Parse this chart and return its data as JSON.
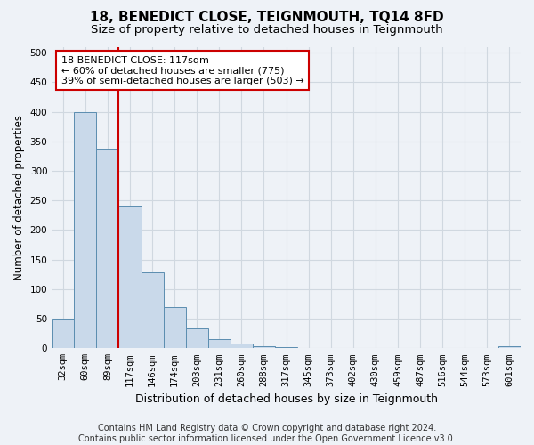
{
  "title": "18, BENEDICT CLOSE, TEIGNMOUTH, TQ14 8FD",
  "subtitle": "Size of property relative to detached houses in Teignmouth",
  "xlabel": "Distribution of detached houses by size in Teignmouth",
  "ylabel": "Number of detached properties",
  "footer_line1": "Contains HM Land Registry data © Crown copyright and database right 2024.",
  "footer_line2": "Contains public sector information licensed under the Open Government Licence v3.0.",
  "categories": [
    "32sqm",
    "60sqm",
    "89sqm",
    "117sqm",
    "146sqm",
    "174sqm",
    "203sqm",
    "231sqm",
    "260sqm",
    "288sqm",
    "317sqm",
    "345sqm",
    "373sqm",
    "402sqm",
    "430sqm",
    "459sqm",
    "487sqm",
    "516sqm",
    "544sqm",
    "573sqm",
    "601sqm"
  ],
  "values": [
    50,
    400,
    338,
    240,
    128,
    70,
    33,
    15,
    8,
    3,
    2,
    1,
    1,
    1,
    0,
    1,
    0,
    0,
    0,
    0,
    3
  ],
  "bar_color": "#c9d9ea",
  "bar_edge_color": "#5b8db0",
  "red_line_index": 3,
  "annotation_line1": "18 BENEDICT CLOSE: 117sqm",
  "annotation_line2": "← 60% of detached houses are smaller (775)",
  "annotation_line3": "39% of semi-detached houses are larger (503) →",
  "annotation_box_facecolor": "#ffffff",
  "annotation_box_edgecolor": "#cc0000",
  "red_line_color": "#cc0000",
  "ylim": [
    0,
    510
  ],
  "yticks": [
    0,
    50,
    100,
    150,
    200,
    250,
    300,
    350,
    400,
    450,
    500
  ],
  "grid_color": "#d0d8e0",
  "bg_color": "#eef2f7",
  "title_fontsize": 11,
  "subtitle_fontsize": 9.5,
  "ylabel_fontsize": 8.5,
  "xlabel_fontsize": 9,
  "tick_fontsize": 7.5,
  "annotation_fontsize": 8,
  "footer_fontsize": 7
}
